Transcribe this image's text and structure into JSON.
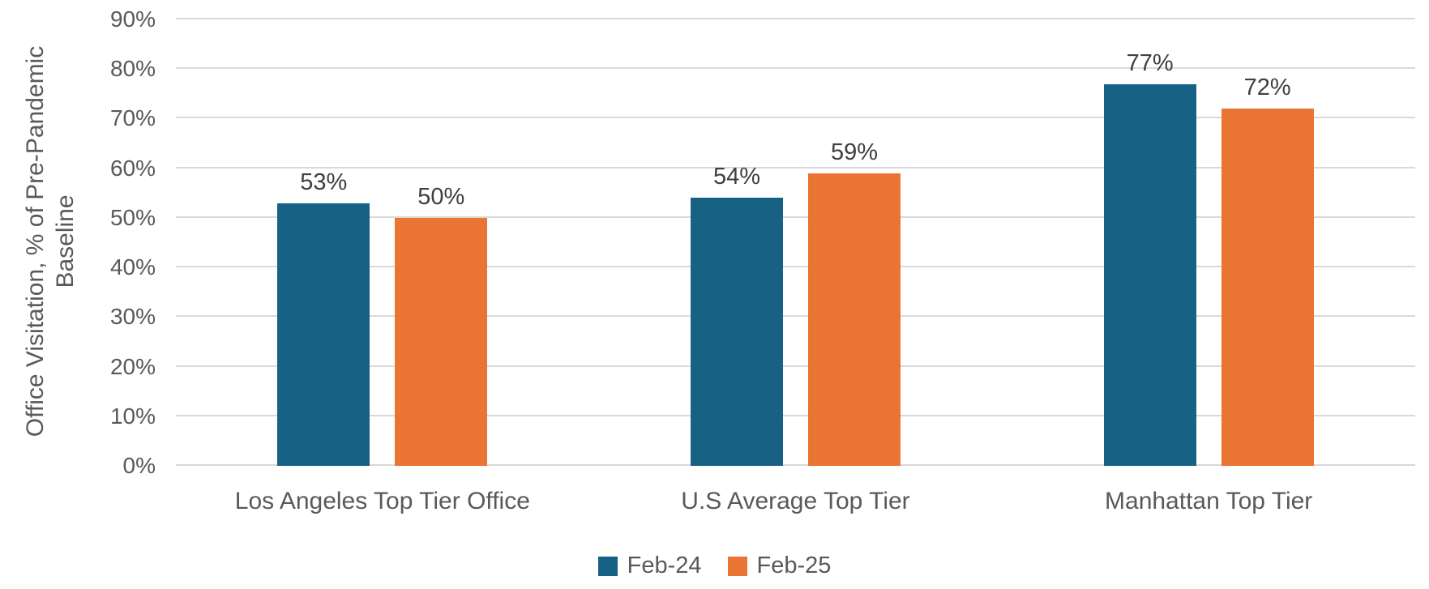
{
  "styles": {
    "background": "#FFFFFF",
    "gridline_color": "#D9D9D9",
    "axis_line_color": "#D9D9D9",
    "tick_label_color": "#595959",
    "category_label_color": "#595959",
    "axis_title_color": "#595959",
    "data_label_color": "#3F3F3F",
    "series1_color": "#176284",
    "series2_color": "#EA7434"
  },
  "chart_data": {
    "type": "bar",
    "title": "",
    "xlabel": "",
    "ylabel": "Office Visitation, % of Pre-Pandemic Baseline",
    "ylabel_lines": [
      "Office Visitation, % of Pre-Pandemic",
      "Baseline"
    ],
    "categories": [
      "Los Angeles Top Tier Office",
      "U.S Average Top Tier",
      "Manhattan Top Tier"
    ],
    "series": [
      {
        "name": "Feb-24",
        "color": "#176284",
        "values": [
          53,
          54,
          77
        ]
      },
      {
        "name": "Feb-25",
        "color": "#EA7434",
        "values": [
          50,
          59,
          72
        ]
      }
    ],
    "data_labels": [
      "53%",
      "50%",
      "54%",
      "59%",
      "77%",
      "72%"
    ],
    "value_suffix": "%",
    "yticks": [
      0,
      10,
      20,
      30,
      40,
      50,
      60,
      70,
      80,
      90
    ],
    "ytick_labels": [
      "0%",
      "10%",
      "20%",
      "30%",
      "40%",
      "50%",
      "60%",
      "70%",
      "80%",
      "90%"
    ],
    "ylim": [
      0,
      90
    ],
    "grid": true,
    "legend_position": "bottom"
  }
}
